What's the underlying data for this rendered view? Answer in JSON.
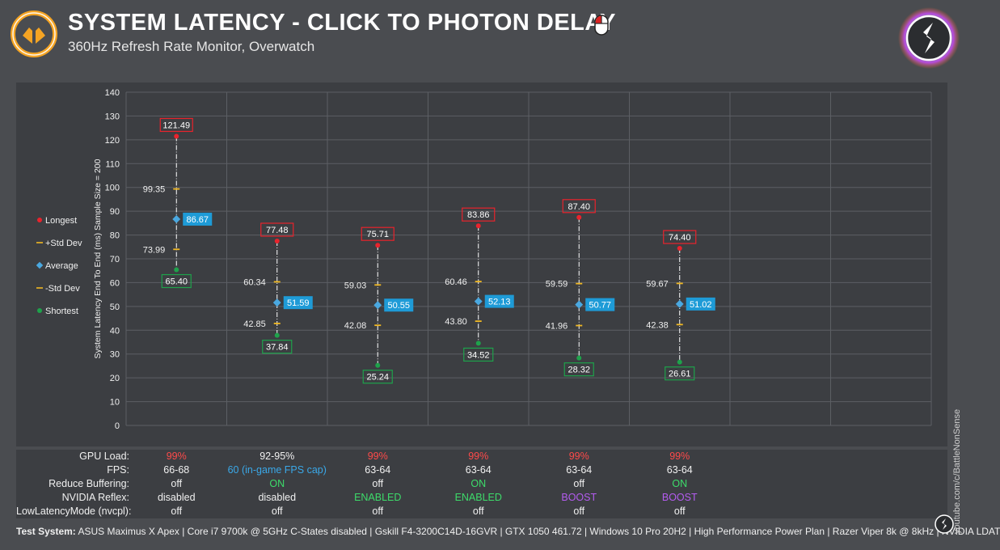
{
  "header": {
    "title": "SYSTEM LATENCY - CLICK TO PHOTON DELAY",
    "subtitle": "360Hz Refresh Rate Monitor, Overwatch"
  },
  "colors": {
    "longest": "#e8232c",
    "shortest": "#1ea24b",
    "average": "#4aa8e0",
    "std": "#f0b823",
    "avg_label_bg": "#1e9bd7",
    "red_text": "#ff4a4a",
    "green_text": "#3ddc6a",
    "blue_text": "#3aa8e8",
    "purple_text": "#b45cf0"
  },
  "chart_data": {
    "type": "scatter",
    "ylabel": "System Latency End To End (ms) Sample Size = 200",
    "ylim": [
      0,
      140
    ],
    "yticks": [
      0,
      10,
      20,
      30,
      40,
      50,
      60,
      70,
      80,
      90,
      100,
      110,
      120,
      130,
      140
    ],
    "grid": true,
    "legend_position": "left",
    "legend": [
      {
        "key": "longest",
        "label": "Longest",
        "marker": "dot",
        "color": "#e8232c"
      },
      {
        "key": "plus_std",
        "label": "+Std Dev",
        "marker": "dash",
        "color": "#f0b823"
      },
      {
        "key": "average",
        "label": "Average",
        "marker": "diamond",
        "color": "#4aa8e0"
      },
      {
        "key": "minus_std",
        "label": "-Std Dev",
        "marker": "dash",
        "color": "#f0b823"
      },
      {
        "key": "shortest",
        "label": "Shortest",
        "marker": "dot",
        "color": "#1ea24b"
      }
    ],
    "groups": [
      {
        "longest": 121.49,
        "longest_label": "121.49",
        "plus_std": 99.35,
        "plus_std_label": "99.35",
        "average": 86.67,
        "average_label": "86.67",
        "minus_std": 73.99,
        "minus_std_label": "73.99",
        "shortest": 65.4,
        "shortest_label": "65.40"
      },
      {
        "longest": 77.48,
        "longest_label": "77.48",
        "plus_std": 60.34,
        "plus_std_label": "60.34",
        "average": 51.59,
        "average_label": "51.59",
        "minus_std": 42.85,
        "minus_std_label": "42.85",
        "shortest": 37.84,
        "shortest_label": "37.84"
      },
      {
        "longest": 75.71,
        "longest_label": "75.71",
        "plus_std": 59.03,
        "plus_std_label": "59.03",
        "average": 50.55,
        "average_label": "50.55",
        "minus_std": 42.08,
        "minus_std_label": "42.08",
        "shortest": 25.24,
        "shortest_label": "25.24"
      },
      {
        "longest": 83.86,
        "longest_label": "83.86",
        "plus_std": 60.46,
        "plus_std_label": "60.46",
        "average": 52.13,
        "average_label": "52.13",
        "minus_std": 43.8,
        "minus_std_label": "43.80",
        "shortest": 34.52,
        "shortest_label": "34.52"
      },
      {
        "longest": 87.4,
        "longest_label": "87.40",
        "plus_std": 59.59,
        "plus_std_label": "59.59",
        "average": 50.77,
        "average_label": "50.77",
        "minus_std": 41.96,
        "minus_std_label": "41.96",
        "shortest": 28.32,
        "shortest_label": "28.32"
      },
      {
        "longest": 74.4,
        "longest_label": "74.40",
        "plus_std": 59.67,
        "plus_std_label": "59.67",
        "average": 51.02,
        "average_label": "51.02",
        "minus_std": 42.38,
        "minus_std_label": "42.38",
        "shortest": 26.61,
        "shortest_label": "26.61"
      }
    ]
  },
  "table": {
    "rows": [
      {
        "label": "GPU Load:",
        "cells": [
          {
            "text": "99%",
            "color": "red"
          },
          {
            "text": "92-95%",
            "color": "white"
          },
          {
            "text": "99%",
            "color": "red"
          },
          {
            "text": "99%",
            "color": "red"
          },
          {
            "text": "99%",
            "color": "red"
          },
          {
            "text": "99%",
            "color": "red"
          }
        ]
      },
      {
        "label": "FPS:",
        "cells": [
          {
            "text": "66-68",
            "color": "white"
          },
          {
            "text": "60 (in-game FPS cap)",
            "color": "blue"
          },
          {
            "text": "63-64",
            "color": "white"
          },
          {
            "text": "63-64",
            "color": "white"
          },
          {
            "text": "63-64",
            "color": "white"
          },
          {
            "text": "63-64",
            "color": "white"
          }
        ]
      },
      {
        "label": "Reduce Buffering:",
        "cells": [
          {
            "text": "off",
            "color": "white"
          },
          {
            "text": "ON",
            "color": "green"
          },
          {
            "text": "off",
            "color": "white"
          },
          {
            "text": "ON",
            "color": "green"
          },
          {
            "text": "off",
            "color": "white"
          },
          {
            "text": "ON",
            "color": "green"
          }
        ]
      },
      {
        "label": "NVIDIA Reflex:",
        "cells": [
          {
            "text": "disabled",
            "color": "white"
          },
          {
            "text": "disabled",
            "color": "white"
          },
          {
            "text": "ENABLED",
            "color": "green"
          },
          {
            "text": "ENABLED",
            "color": "green"
          },
          {
            "text": "BOOST",
            "color": "purple"
          },
          {
            "text": "BOOST",
            "color": "purple"
          }
        ]
      },
      {
        "label": "LowLatencyMode (nvcpl):",
        "cells": [
          {
            "text": "off",
            "color": "white"
          },
          {
            "text": "off",
            "color": "white"
          },
          {
            "text": "off",
            "color": "white"
          },
          {
            "text": "off",
            "color": "white"
          },
          {
            "text": "off",
            "color": "white"
          },
          {
            "text": "off",
            "color": "white"
          }
        ]
      }
    ]
  },
  "footer": {
    "label": "Test System:",
    "text": " ASUS Maximus X Apex | Core i7 9700k @ 5GHz C-States disabled | Gskill F4-3200C14D-16GVR | GTX 1050 461.72 | Windows 10 Pro 20H2 | High Performance Power Plan | Razer Viper 8k @ 8kHz | NVIDIA LDAT",
    "channel_url": "youtube.com/c/BattleNonSense"
  }
}
